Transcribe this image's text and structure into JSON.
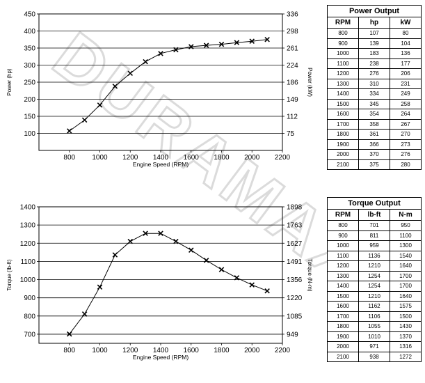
{
  "charts": {
    "power": {
      "xlabel": "Engine Speed (RPM)",
      "ylabel_left": "Power (hp)",
      "ylabel_right": "Power (kW)"
    },
    "torque": {
      "xlabel": "Engine Speed (RPM)",
      "ylabel_left": "Torque (lb-ft)",
      "ylabel_right": "Torque (N-m)"
    }
  },
  "chart_data": [
    {
      "type": "line",
      "title": "",
      "xlabel": "Engine Speed (RPM)",
      "ylabel": "Power (hp)",
      "ylabel_right": "Power (kW)",
      "xlim": [
        600,
        2200
      ],
      "xticks": [
        800,
        1000,
        1200,
        1400,
        1600,
        1800,
        2000,
        2200
      ],
      "ylim": [
        50,
        450
      ],
      "yticks": [
        100,
        150,
        200,
        250,
        300,
        350,
        400,
        450
      ],
      "yticks_right": [
        "75",
        "112",
        "149",
        "186",
        "224",
        "261",
        "298",
        "336"
      ],
      "grid": true,
      "marker": "x",
      "x": [
        800,
        900,
        1000,
        1100,
        1200,
        1300,
        1400,
        1500,
        1600,
        1700,
        1800,
        1900,
        2000,
        2100
      ],
      "y": [
        107,
        139,
        183,
        238,
        276,
        310,
        334,
        345,
        354,
        358,
        361,
        366,
        370,
        375
      ]
    },
    {
      "type": "line",
      "title": "",
      "xlabel": "Engine Speed (RPM)",
      "ylabel": "Torque (lb-ft)",
      "ylabel_right": "Torque (N-m)",
      "xlim": [
        600,
        2200
      ],
      "xticks": [
        800,
        1000,
        1200,
        1400,
        1600,
        1800,
        2000,
        2200
      ],
      "ylim": [
        650,
        1400
      ],
      "yticks": [
        700,
        800,
        900,
        1000,
        1100,
        1200,
        1300,
        1400
      ],
      "yticks_right": [
        "949",
        "1085",
        "1220",
        "1356",
        "1491",
        "1627",
        "1763",
        "1898"
      ],
      "grid": true,
      "marker": "x",
      "x": [
        800,
        900,
        1000,
        1100,
        1200,
        1300,
        1400,
        1500,
        1600,
        1700,
        1800,
        1900,
        2000,
        2100
      ],
      "y": [
        701,
        811,
        959,
        1136,
        1210,
        1254,
        1254,
        1210,
        1162,
        1106,
        1055,
        1010,
        971,
        938
      ]
    }
  ],
  "tables": {
    "power": {
      "title": "Power Output",
      "headers": [
        "RPM",
        "hp",
        "kW"
      ],
      "rows": [
        [
          "800",
          "107",
          "80"
        ],
        [
          "900",
          "139",
          "104"
        ],
        [
          "1000",
          "183",
          "136"
        ],
        [
          "1100",
          "238",
          "177"
        ],
        [
          "1200",
          "276",
          "206"
        ],
        [
          "1300",
          "310",
          "231"
        ],
        [
          "1400",
          "334",
          "249"
        ],
        [
          "1500",
          "345",
          "258"
        ],
        [
          "1600",
          "354",
          "264"
        ],
        [
          "1700",
          "358",
          "267"
        ],
        [
          "1800",
          "361",
          "270"
        ],
        [
          "1900",
          "366",
          "273"
        ],
        [
          "2000",
          "370",
          "276"
        ],
        [
          "2100",
          "375",
          "280"
        ]
      ]
    },
    "torque": {
      "title": "Torque Output",
      "headers": [
        "RPM",
        "lb-ft",
        "N-m"
      ],
      "rows": [
        [
          "800",
          "701",
          "950"
        ],
        [
          "900",
          "811",
          "1100"
        ],
        [
          "1000",
          "959",
          "1300"
        ],
        [
          "1100",
          "1136",
          "1540"
        ],
        [
          "1200",
          "1210",
          "1640"
        ],
        [
          "1300",
          "1254",
          "1700"
        ],
        [
          "1400",
          "1254",
          "1700"
        ],
        [
          "1500",
          "1210",
          "1640"
        ],
        [
          "1600",
          "1162",
          "1575"
        ],
        [
          "1700",
          "1106",
          "1500"
        ],
        [
          "1800",
          "1055",
          "1430"
        ],
        [
          "1900",
          "1010",
          "1370"
        ],
        [
          "2000",
          "971",
          "1316"
        ],
        [
          "2100",
          "938",
          "1272"
        ]
      ]
    }
  },
  "watermark": {
    "text": "DURAMAX"
  },
  "colors": {
    "watermark": "#c8c8c8",
    "grid": "#000000",
    "line": "#000000"
  }
}
